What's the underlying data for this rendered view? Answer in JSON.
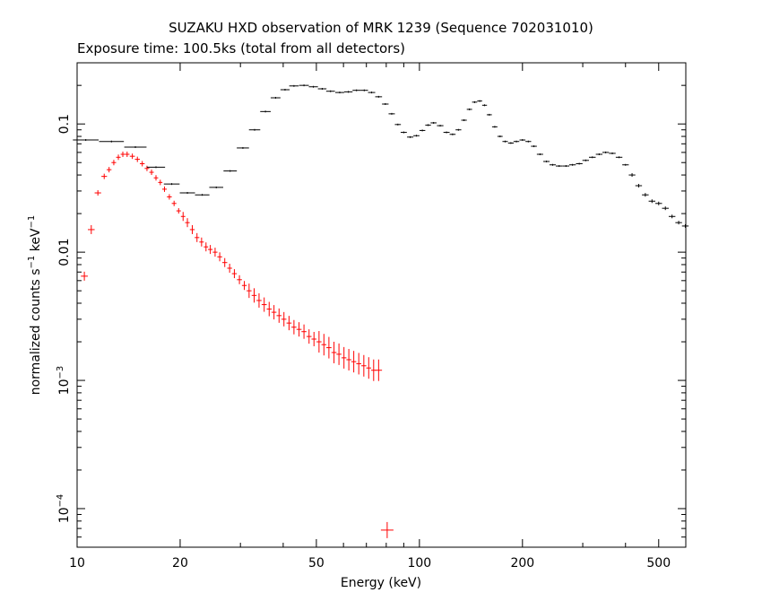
{
  "chart_data": {
    "type": "scatter",
    "title": "SUZAKU HXD observation of MRK 1239 (Sequence 702031010)",
    "subtitle": "Exposure time: 100.5ks (total from all detectors)",
    "xlabel": "Energy (keV)",
    "ylabel": {
      "base": "normalized counts s",
      "exp1": "−1",
      "mid": " keV",
      "exp2": "−1"
    },
    "xscale": "log",
    "yscale": "log",
    "xlim": [
      10,
      600
    ],
    "ylim": [
      5e-05,
      0.3
    ],
    "grid": false,
    "x_ticks": [
      {
        "value": 10,
        "label": "10"
      },
      {
        "value": 20,
        "label": "20"
      },
      {
        "value": 50,
        "label": "50"
      },
      {
        "value": 100,
        "label": "100"
      },
      {
        "value": 200,
        "label": "200"
      },
      {
        "value": 500,
        "label": "500"
      }
    ],
    "y_ticks": [
      {
        "value": 0.0001,
        "base": "10",
        "exp": "−4"
      },
      {
        "value": 0.001,
        "base": "10",
        "exp": "−3"
      },
      {
        "value": 0.01,
        "base": "0.01",
        "exp": ""
      },
      {
        "value": 0.1,
        "base": "0.1",
        "exp": ""
      }
    ],
    "series": [
      {
        "color": "#ff0000",
        "points": [
          {
            "x": 10.5,
            "y": 0.0065
          },
          {
            "x": 11.0,
            "y": 0.015
          },
          {
            "x": 11.5,
            "y": 0.029
          },
          {
            "x": 12.0,
            "y": 0.039
          },
          {
            "x": 12.4,
            "y": 0.044
          },
          {
            "x": 12.8,
            "y": 0.05
          },
          {
            "x": 13.2,
            "y": 0.055
          },
          {
            "x": 13.6,
            "y": 0.058
          },
          {
            "x": 14.0,
            "y": 0.058
          },
          {
            "x": 14.5,
            "y": 0.056
          },
          {
            "x": 15.0,
            "y": 0.053
          },
          {
            "x": 15.5,
            "y": 0.049
          },
          {
            "x": 16.0,
            "y": 0.045
          },
          {
            "x": 16.5,
            "y": 0.042
          },
          {
            "x": 17.0,
            "y": 0.038
          },
          {
            "x": 17.5,
            "y": 0.035
          },
          {
            "x": 18.0,
            "y": 0.031
          },
          {
            "x": 18.6,
            "y": 0.027
          },
          {
            "x": 19.2,
            "y": 0.024
          },
          {
            "x": 19.8,
            "y": 0.021
          },
          {
            "x": 20.4,
            "y": 0.019
          },
          {
            "x": 21.0,
            "y": 0.017
          },
          {
            "x": 21.7,
            "y": 0.015
          },
          {
            "x": 22.4,
            "y": 0.013
          },
          {
            "x": 23.1,
            "y": 0.012
          },
          {
            "x": 23.8,
            "y": 0.011
          },
          {
            "x": 24.5,
            "y": 0.0105
          },
          {
            "x": 25.3,
            "y": 0.01
          },
          {
            "x": 26.1,
            "y": 0.0092
          },
          {
            "x": 27.0,
            "y": 0.0083
          },
          {
            "x": 27.9,
            "y": 0.0075
          },
          {
            "x": 28.8,
            "y": 0.0068
          },
          {
            "x": 29.8,
            "y": 0.0061
          },
          {
            "x": 30.8,
            "y": 0.0055
          },
          {
            "x": 31.8,
            "y": 0.005
          },
          {
            "x": 32.9,
            "y": 0.0046
          },
          {
            "x": 34.0,
            "y": 0.0042
          },
          {
            "x": 35.2,
            "y": 0.0039
          },
          {
            "x": 36.4,
            "y": 0.0036
          },
          {
            "x": 37.6,
            "y": 0.0034
          },
          {
            "x": 38.9,
            "y": 0.0032
          },
          {
            "x": 40.2,
            "y": 0.003
          },
          {
            "x": 41.6,
            "y": 0.0028
          },
          {
            "x": 43.0,
            "y": 0.0026
          },
          {
            "x": 44.5,
            "y": 0.0025
          },
          {
            "x": 46.0,
            "y": 0.0024
          },
          {
            "x": 47.6,
            "y": 0.0022
          },
          {
            "x": 49.2,
            "y": 0.0021
          },
          {
            "x": 50.9,
            "y": 0.002
          },
          {
            "x": 52.6,
            "y": 0.0019
          },
          {
            "x": 54.4,
            "y": 0.0018
          },
          {
            "x": 56.3,
            "y": 0.00165
          },
          {
            "x": 58.2,
            "y": 0.0016
          },
          {
            "x": 60.2,
            "y": 0.0015
          },
          {
            "x": 62.2,
            "y": 0.00145
          },
          {
            "x": 64.3,
            "y": 0.0014
          },
          {
            "x": 66.5,
            "y": 0.00135
          },
          {
            "x": 68.8,
            "y": 0.0013
          },
          {
            "x": 71.1,
            "y": 0.00125
          },
          {
            "x": 73.5,
            "y": 0.0012
          },
          {
            "x": 76.0,
            "y": 0.0012
          },
          {
            "x": 80.5,
            "y": 6.8e-05
          }
        ]
      },
      {
        "color": "#000000",
        "points": [
          {
            "x": 10.6,
            "y": 0.075
          },
          {
            "x": 12.6,
            "y": 0.073
          },
          {
            "x": 14.8,
            "y": 0.066
          },
          {
            "x": 17.0,
            "y": 0.046
          },
          {
            "x": 18.9,
            "y": 0.034
          },
          {
            "x": 21.0,
            "y": 0.029
          },
          {
            "x": 23.2,
            "y": 0.028
          },
          {
            "x": 25.5,
            "y": 0.032
          },
          {
            "x": 28.0,
            "y": 0.043
          },
          {
            "x": 30.5,
            "y": 0.065
          },
          {
            "x": 33.0,
            "y": 0.09
          },
          {
            "x": 35.5,
            "y": 0.125
          },
          {
            "x": 38.0,
            "y": 0.16
          },
          {
            "x": 40.5,
            "y": 0.185
          },
          {
            "x": 43.0,
            "y": 0.198
          },
          {
            "x": 46.0,
            "y": 0.2
          },
          {
            "x": 49.0,
            "y": 0.195
          },
          {
            "x": 52.0,
            "y": 0.188
          },
          {
            "x": 55.0,
            "y": 0.18
          },
          {
            "x": 58.5,
            "y": 0.176
          },
          {
            "x": 62.0,
            "y": 0.178
          },
          {
            "x": 65.5,
            "y": 0.183
          },
          {
            "x": 69.0,
            "y": 0.183
          },
          {
            "x": 72.5,
            "y": 0.176
          },
          {
            "x": 76.0,
            "y": 0.163
          },
          {
            "x": 79.5,
            "y": 0.143
          },
          {
            "x": 83.0,
            "y": 0.12
          },
          {
            "x": 86.5,
            "y": 0.099
          },
          {
            "x": 90.0,
            "y": 0.086
          },
          {
            "x": 94.0,
            "y": 0.079
          },
          {
            "x": 98.0,
            "y": 0.081
          },
          {
            "x": 102.0,
            "y": 0.089
          },
          {
            "x": 106.0,
            "y": 0.098
          },
          {
            "x": 110.0,
            "y": 0.102
          },
          {
            "x": 115.0,
            "y": 0.097
          },
          {
            "x": 120.0,
            "y": 0.086
          },
          {
            "x": 125.0,
            "y": 0.083
          },
          {
            "x": 130.0,
            "y": 0.09
          },
          {
            "x": 135.0,
            "y": 0.107
          },
          {
            "x": 140.0,
            "y": 0.13
          },
          {
            "x": 145.0,
            "y": 0.148
          },
          {
            "x": 150.0,
            "y": 0.151
          },
          {
            "x": 155.0,
            "y": 0.14
          },
          {
            "x": 160.0,
            "y": 0.118
          },
          {
            "x": 166.0,
            "y": 0.095
          },
          {
            "x": 172.0,
            "y": 0.08
          },
          {
            "x": 178.0,
            "y": 0.073
          },
          {
            "x": 185.0,
            "y": 0.071
          },
          {
            "x": 192.0,
            "y": 0.073
          },
          {
            "x": 200.0,
            "y": 0.075
          },
          {
            "x": 208.0,
            "y": 0.073
          },
          {
            "x": 216.0,
            "y": 0.067
          },
          {
            "x": 225.0,
            "y": 0.058
          },
          {
            "x": 235.0,
            "y": 0.051
          },
          {
            "x": 245.0,
            "y": 0.048
          },
          {
            "x": 256.0,
            "y": 0.047
          },
          {
            "x": 268.0,
            "y": 0.047
          },
          {
            "x": 280.0,
            "y": 0.048
          },
          {
            "x": 293.0,
            "y": 0.049
          },
          {
            "x": 306.0,
            "y": 0.052
          },
          {
            "x": 320.0,
            "y": 0.055
          },
          {
            "x": 335.0,
            "y": 0.058
          },
          {
            "x": 350.0,
            "y": 0.06
          },
          {
            "x": 366.0,
            "y": 0.059
          },
          {
            "x": 383.0,
            "y": 0.055
          },
          {
            "x": 400.0,
            "y": 0.048
          },
          {
            "x": 418.0,
            "y": 0.04
          },
          {
            "x": 437.0,
            "y": 0.033
          },
          {
            "x": 457.0,
            "y": 0.028
          },
          {
            "x": 478.0,
            "y": 0.025
          },
          {
            "x": 500.0,
            "y": 0.024
          },
          {
            "x": 523.0,
            "y": 0.022
          },
          {
            "x": 547.0,
            "y": 0.019
          },
          {
            "x": 572.0,
            "y": 0.017
          },
          {
            "x": 598.0,
            "y": 0.016
          }
        ]
      }
    ]
  }
}
